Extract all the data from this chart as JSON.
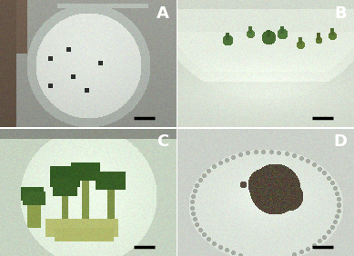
{
  "figure_size": [
    3.89,
    2.82
  ],
  "dpi": 100,
  "panels": [
    "A",
    "B",
    "C",
    "D"
  ],
  "panel_label_fontsize": 13,
  "panel_label_color": "white",
  "scale_bar_color": "black",
  "colors": {
    "A_bg": [
      0.62,
      0.63,
      0.6
    ],
    "A_dish_outer": [
      0.8,
      0.82,
      0.8
    ],
    "A_dish_inner": [
      0.88,
      0.9,
      0.87
    ],
    "A_ring": [
      0.72,
      0.75,
      0.72
    ],
    "A_finger": [
      0.45,
      0.38,
      0.32
    ],
    "B_bg": [
      0.82,
      0.85,
      0.8
    ],
    "B_dish": [
      0.88,
      0.91,
      0.86
    ],
    "B_medium": [
      0.9,
      0.93,
      0.88
    ],
    "C_bg": [
      0.78,
      0.83,
      0.76
    ],
    "C_dish": [
      0.85,
      0.9,
      0.83
    ],
    "D_bg": [
      0.8,
      0.82,
      0.79
    ],
    "D_dish": [
      0.86,
      0.89,
      0.85
    ],
    "seedling": [
      0.25,
      0.4,
      0.18
    ],
    "callus": [
      0.32,
      0.28,
      0.22
    ]
  },
  "grid_rows": 2,
  "grid_cols": 2,
  "hspace": 0.01,
  "wspace": 0.01
}
